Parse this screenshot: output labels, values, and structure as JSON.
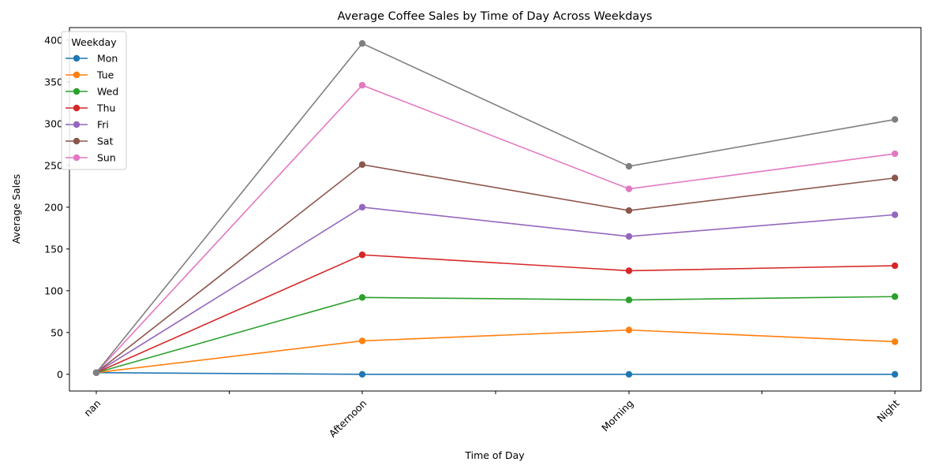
{
  "chart_data": {
    "type": "line",
    "title": "Average Coffee Sales by Time of Day Across Weekdays",
    "xlabel": "Time of Day",
    "ylabel": "Average Sales",
    "categories": [
      "nan",
      "Afternoon",
      "Morning",
      "Night"
    ],
    "ylim": [
      -20,
      415
    ],
    "yticks": [
      0,
      50,
      100,
      150,
      200,
      250,
      300,
      350,
      400
    ],
    "legend": {
      "title": "Weekday",
      "placement": "top-left"
    },
    "grid": false,
    "series": [
      {
        "name": "Mon",
        "color": "#1f77b4",
        "values": [
          2,
          0,
          0,
          0
        ]
      },
      {
        "name": "Tue",
        "color": "#ff7f0e",
        "values": [
          2,
          40,
          53,
          39
        ]
      },
      {
        "name": "Wed",
        "color": "#2ca02c",
        "values": [
          2,
          92,
          89,
          93
        ]
      },
      {
        "name": "Thu",
        "color": "#d62728",
        "values": [
          2,
          143,
          124,
          130
        ]
      },
      {
        "name": "Fri",
        "color": "#9467bd",
        "values": [
          2,
          200,
          165,
          191
        ]
      },
      {
        "name": "Sat",
        "color": "#8c564b",
        "values": [
          2,
          251,
          196,
          235
        ]
      },
      {
        "name": "Sun",
        "color": "#e377c2",
        "values": [
          2,
          346,
          222,
          264
        ]
      },
      {
        "name": "",
        "color": "#7f7f7f",
        "values": [
          2,
          396,
          249,
          305
        ]
      }
    ]
  }
}
